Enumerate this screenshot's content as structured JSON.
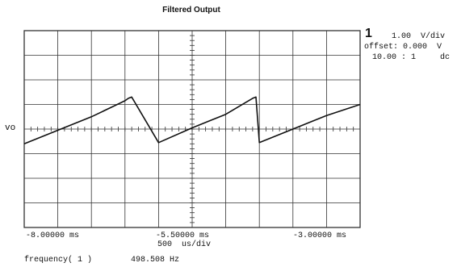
{
  "title": "Filtered Output",
  "channel": {
    "number": "1",
    "scale": "1.00  V/div",
    "offset": "offset: 0.000  V",
    "probe": "10.00 : 1     dc"
  },
  "trace_label": "vo",
  "time_labels": {
    "left": "-8.00000 ms",
    "center": "-5.50000 ms",
    "timebase": "500  us/div",
    "right": "-3.00000 ms"
  },
  "measurement": {
    "label": "frequency( 1 )",
    "value": "498.508 Hz"
  },
  "colors": {
    "trace": "#111111",
    "grid": "#333333"
  },
  "chart_data": {
    "type": "line",
    "title": "Filtered Output",
    "xlabel": "500 us/div",
    "ylabel": "vo",
    "xlim": [
      -8.0,
      -3.0
    ],
    "ylim": [
      -4,
      4
    ],
    "grid": true,
    "x_unit": "ms",
    "y_unit": "V",
    "series": [
      {
        "name": "",
        "x": [
          -8.0,
          -7.5,
          -7.0,
          -6.5,
          -6.45,
          -6.4,
          -6.0,
          -5.5,
          -5.0,
          -4.6,
          -4.55,
          -4.5,
          -4.0,
          -3.5,
          -3.0
        ],
        "y": [
          -0.6,
          -0.05,
          0.5,
          1.15,
          1.25,
          1.3,
          -0.55,
          0.05,
          0.6,
          1.25,
          1.3,
          -0.55,
          0.0,
          0.55,
          1.0
        ]
      }
    ]
  }
}
